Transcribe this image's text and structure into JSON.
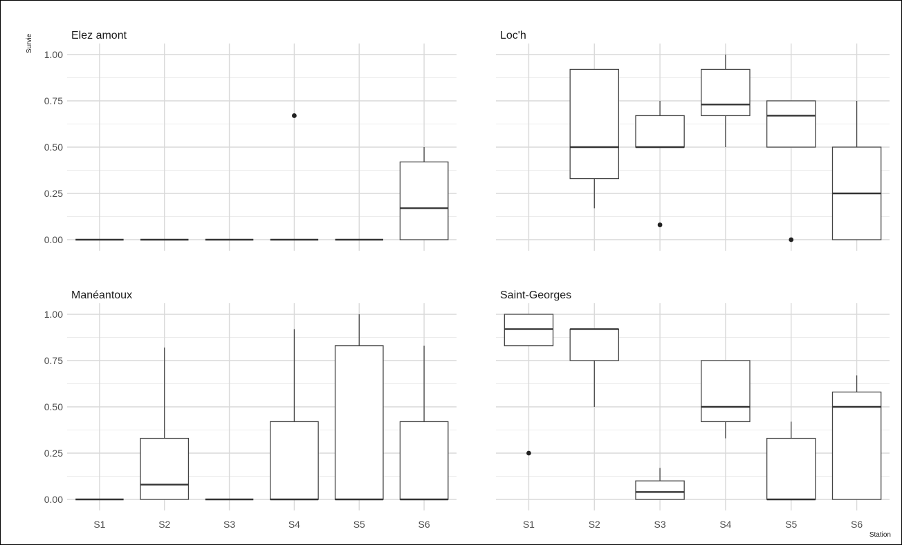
{
  "chart_data": {
    "type": "boxplot",
    "ylabel": "Survie",
    "xlabel": "Station",
    "categories": [
      "S1",
      "S2",
      "S3",
      "S4",
      "S5",
      "S6"
    ],
    "ylim": [
      0,
      1
    ],
    "y_ticks": [
      "0.00",
      "0.25",
      "0.50",
      "0.75",
      "1.00"
    ],
    "grid": true,
    "panels": [
      {
        "title": "Elez amont",
        "boxes": [
          {
            "station": "S1",
            "min": 0,
            "q1": 0,
            "median": 0,
            "q3": 0,
            "max": 0,
            "outliers": []
          },
          {
            "station": "S2",
            "min": 0,
            "q1": 0,
            "median": 0,
            "q3": 0,
            "max": 0,
            "outliers": []
          },
          {
            "station": "S3",
            "min": 0,
            "q1": 0,
            "median": 0,
            "q3": 0,
            "max": 0,
            "outliers": []
          },
          {
            "station": "S4",
            "min": 0,
            "q1": 0,
            "median": 0,
            "q3": 0,
            "max": 0,
            "outliers": [
              0.67
            ]
          },
          {
            "station": "S5",
            "min": 0,
            "q1": 0,
            "median": 0,
            "q3": 0,
            "max": 0,
            "outliers": []
          },
          {
            "station": "S6",
            "min": 0,
            "q1": 0,
            "median": 0.17,
            "q3": 0.42,
            "max": 0.5,
            "outliers": []
          }
        ]
      },
      {
        "title": "Loc'h",
        "boxes": [
          {
            "station": "S2",
            "min": 0.17,
            "q1": 0.33,
            "median": 0.5,
            "q3": 0.92,
            "max": 0.92,
            "outliers": []
          },
          {
            "station": "S3",
            "min": 0.5,
            "q1": 0.5,
            "median": 0.5,
            "q3": 0.67,
            "max": 0.75,
            "outliers": [
              0.08
            ]
          },
          {
            "station": "S4",
            "min": 0.5,
            "q1": 0.67,
            "median": 0.73,
            "q3": 0.92,
            "max": 1.0,
            "outliers": []
          },
          {
            "station": "S5",
            "min": 0.5,
            "q1": 0.5,
            "median": 0.67,
            "q3": 0.75,
            "max": 0.75,
            "outliers": [
              0.0
            ]
          },
          {
            "station": "S6",
            "min": 0,
            "q1": 0,
            "median": 0.25,
            "q3": 0.5,
            "max": 0.75,
            "outliers": []
          }
        ]
      },
      {
        "title": "Manéantoux",
        "boxes": [
          {
            "station": "S1",
            "min": 0,
            "q1": 0,
            "median": 0,
            "q3": 0,
            "max": 0,
            "outliers": []
          },
          {
            "station": "S2",
            "min": 0,
            "q1": 0,
            "median": 0.08,
            "q3": 0.33,
            "max": 0.82,
            "outliers": []
          },
          {
            "station": "S3",
            "min": 0,
            "q1": 0,
            "median": 0,
            "q3": 0,
            "max": 0,
            "outliers": []
          },
          {
            "station": "S4",
            "min": 0,
            "q1": 0,
            "median": 0,
            "q3": 0.42,
            "max": 0.92,
            "outliers": []
          },
          {
            "station": "S5",
            "min": 0,
            "q1": 0,
            "median": 0,
            "q3": 0.83,
            "max": 1.0,
            "outliers": []
          },
          {
            "station": "S6",
            "min": 0,
            "q1": 0,
            "median": 0,
            "q3": 0.42,
            "max": 0.83,
            "outliers": []
          }
        ]
      },
      {
        "title": "Saint-Georges",
        "boxes": [
          {
            "station": "S1",
            "min": 0.83,
            "q1": 0.83,
            "median": 0.92,
            "q3": 1.0,
            "max": 1.0,
            "outliers": [
              0.25
            ]
          },
          {
            "station": "S2",
            "min": 0.5,
            "q1": 0.75,
            "median": 0.92,
            "q3": 0.92,
            "max": 0.92,
            "outliers": []
          },
          {
            "station": "S3",
            "min": 0,
            "q1": 0,
            "median": 0.04,
            "q3": 0.1,
            "max": 0.17,
            "outliers": []
          },
          {
            "station": "S4",
            "min": 0.33,
            "q1": 0.42,
            "median": 0.5,
            "q3": 0.75,
            "max": 0.75,
            "outliers": []
          },
          {
            "station": "S5",
            "min": 0,
            "q1": 0,
            "median": 0,
            "q3": 0.33,
            "max": 0.42,
            "outliers": []
          },
          {
            "station": "S6",
            "min": 0,
            "q1": 0,
            "median": 0.5,
            "q3": 0.58,
            "max": 0.67,
            "outliers": []
          }
        ]
      }
    ]
  }
}
